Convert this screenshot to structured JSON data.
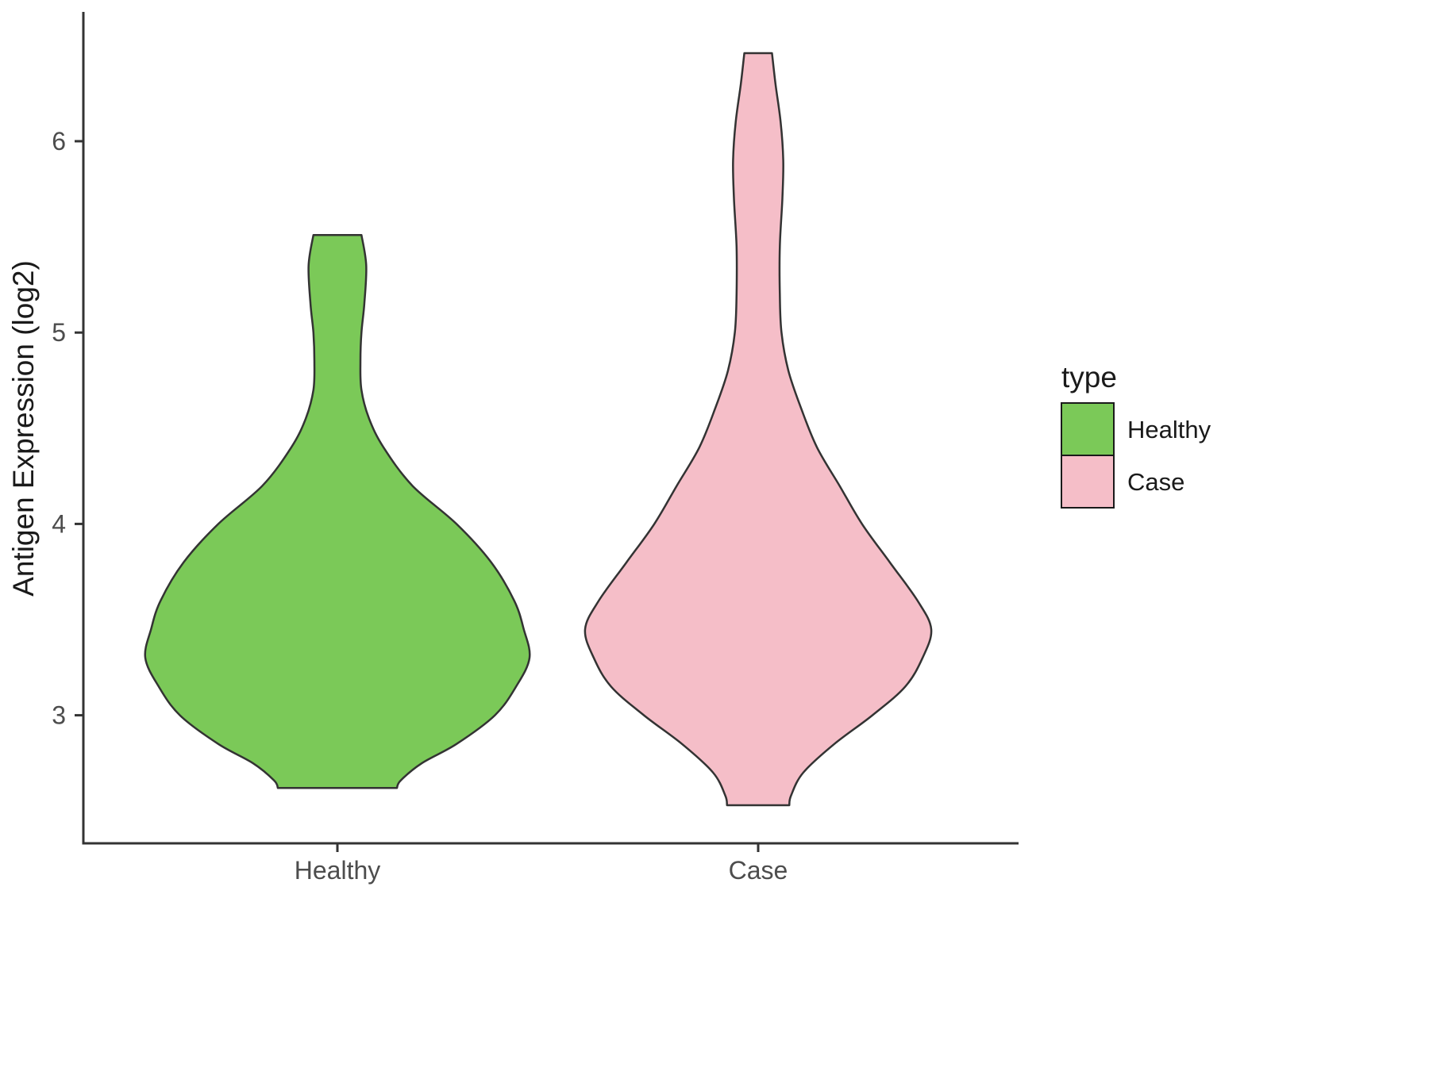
{
  "chart_data": {
    "type": "violin",
    "title": "",
    "xlabel": "",
    "ylabel": "Antigen Expression (log2)",
    "categories": [
      "Healthy",
      "Case"
    ],
    "y_ticks": [
      "3",
      "4",
      "5",
      "6"
    ],
    "y_tick_values": [
      3,
      4,
      5,
      6
    ],
    "ylim": [
      2.3,
      6.6
    ],
    "grid": false,
    "legend": {
      "title": "type",
      "position": "right",
      "entries": [
        {
          "label": "Healthy",
          "color": "#7BC958"
        },
        {
          "label": "Case",
          "color": "#F5BEC8"
        }
      ]
    },
    "style": {
      "outline_color": "#333333",
      "axis_color": "#333333",
      "tick_label_color": "#4D4D4D",
      "title_color": "#1A1A1A",
      "background": "#FFFFFF"
    },
    "series": [
      {
        "name": "Healthy",
        "fill": "#7BC958",
        "y_top": 5.51,
        "y_bottom": 2.62,
        "peak_density_at": 3.3,
        "density_profile": [
          [
            5.51,
            0.125
          ],
          [
            5.35,
            0.15
          ],
          [
            5.15,
            0.14
          ],
          [
            5.0,
            0.125
          ],
          [
            4.85,
            0.12
          ],
          [
            4.7,
            0.125
          ],
          [
            4.55,
            0.165
          ],
          [
            4.4,
            0.24
          ],
          [
            4.2,
            0.39
          ],
          [
            4.0,
            0.62
          ],
          [
            3.8,
            0.8
          ],
          [
            3.6,
            0.92
          ],
          [
            3.45,
            0.97
          ],
          [
            3.3,
            1.0
          ],
          [
            3.15,
            0.93
          ],
          [
            3.0,
            0.82
          ],
          [
            2.85,
            0.62
          ],
          [
            2.75,
            0.44
          ],
          [
            2.66,
            0.33
          ],
          [
            2.62,
            0.31
          ]
        ]
      },
      {
        "name": "Case",
        "fill": "#F5BEC8",
        "y_top": 6.46,
        "y_bottom": 2.53,
        "peak_density_at": 3.45,
        "density_profile": [
          [
            6.46,
            0.08
          ],
          [
            6.3,
            0.1
          ],
          [
            6.1,
            0.13
          ],
          [
            5.9,
            0.145
          ],
          [
            5.7,
            0.14
          ],
          [
            5.45,
            0.125
          ],
          [
            5.2,
            0.125
          ],
          [
            5.0,
            0.135
          ],
          [
            4.8,
            0.175
          ],
          [
            4.6,
            0.25
          ],
          [
            4.4,
            0.34
          ],
          [
            4.2,
            0.47
          ],
          [
            4.0,
            0.6
          ],
          [
            3.8,
            0.76
          ],
          [
            3.6,
            0.92
          ],
          [
            3.45,
            1.0
          ],
          [
            3.3,
            0.95
          ],
          [
            3.15,
            0.85
          ],
          [
            3.0,
            0.66
          ],
          [
            2.85,
            0.44
          ],
          [
            2.7,
            0.26
          ],
          [
            2.58,
            0.19
          ],
          [
            2.53,
            0.18
          ]
        ]
      }
    ]
  }
}
